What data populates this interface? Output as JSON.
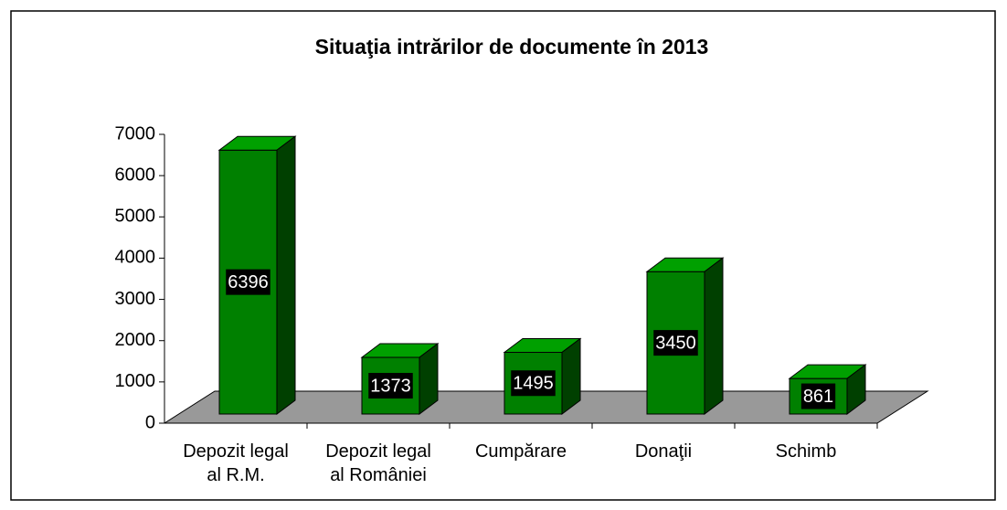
{
  "chart_data": {
    "type": "bar3d",
    "title": "Situaţia intrărilor de documente în 2013",
    "categories": [
      "Depozit legal al R.M.",
      "Depozit legal al României",
      "Cumpărare",
      "Donaţii",
      "Schimb"
    ],
    "values": [
      6396,
      1373,
      1495,
      3450,
      861
    ],
    "color": "#008000",
    "ylim": [
      0,
      7000
    ],
    "yticks": [
      0,
      1000,
      2000,
      3000,
      4000,
      5000,
      6000,
      7000
    ],
    "data_labels": true
  }
}
